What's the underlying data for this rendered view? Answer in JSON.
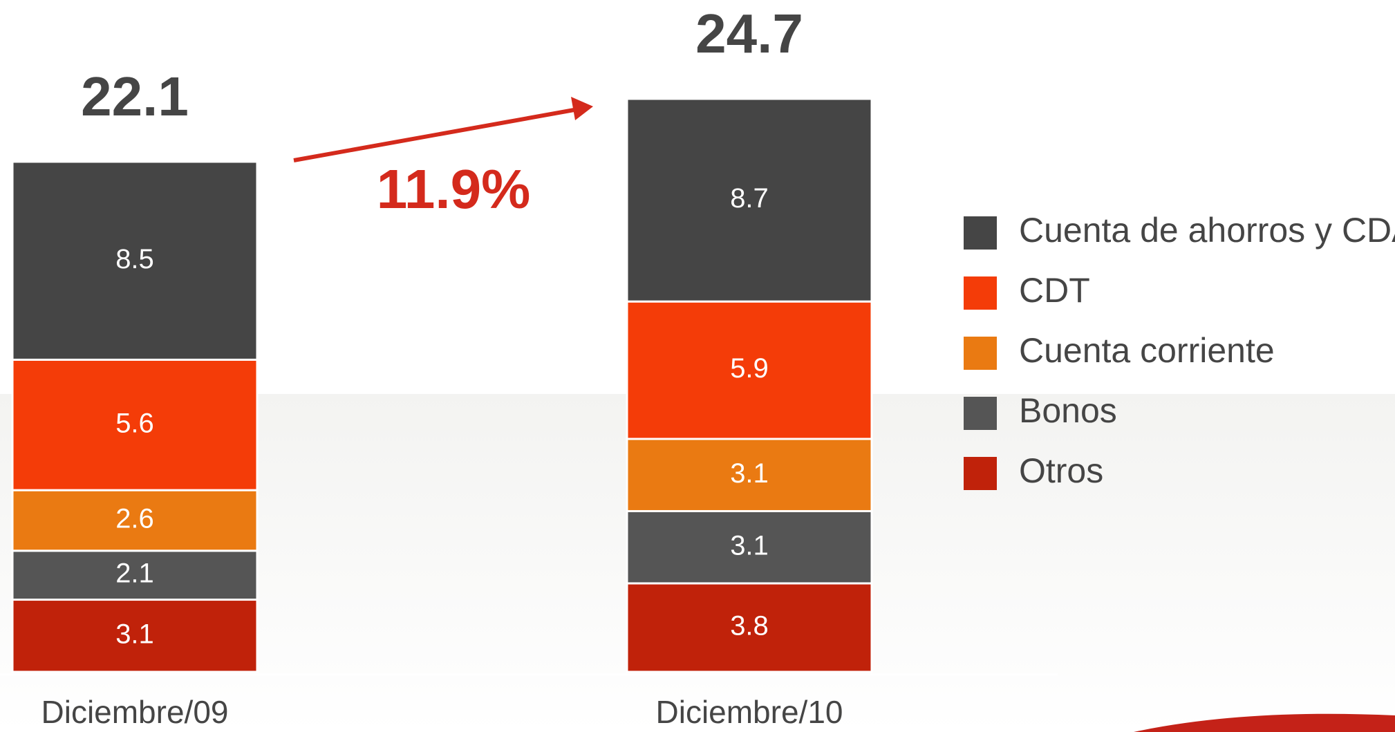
{
  "chart_data": {
    "type": "stacked_bar",
    "categories": [
      "Diciembre/09",
      "Diciembre/10"
    ],
    "series": [
      {
        "name": "Otros",
        "color": "#c0220a",
        "values": [
          3.1,
          3.8
        ]
      },
      {
        "name": "Bonos",
        "color": "#555555",
        "values": [
          2.1,
          3.1
        ]
      },
      {
        "name": "Cuenta corriente",
        "color": "#ea7a12",
        "values": [
          2.6,
          3.1
        ]
      },
      {
        "name": "CDT",
        "color": "#f43c08",
        "values": [
          5.6,
          5.9
        ]
      },
      {
        "name": "Cuenta de ahorros y CDAT",
        "color": "#454545",
        "values": [
          8.5,
          8.7
        ]
      }
    ],
    "totals": [
      22.1,
      24.7
    ],
    "annotation": "11.9%"
  }
}
